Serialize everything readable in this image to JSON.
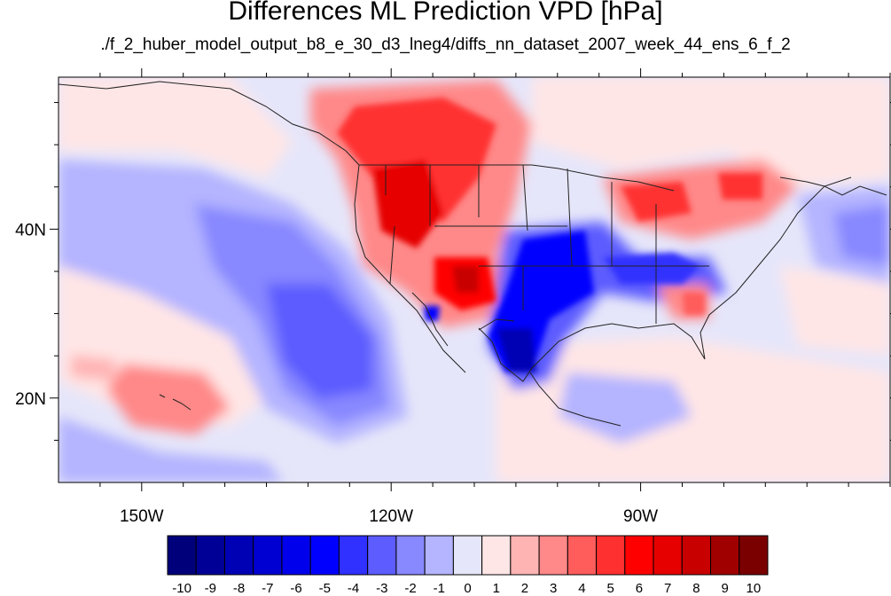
{
  "title": "Differences ML Prediction VPD [hPa]",
  "subtitle": "./f_2_huber_model_output_b8_e_30_d3_lneg4/diffs_nn_dataset_2007_week_44_ens_6_f_2",
  "map": {
    "lon_range": [
      -160,
      -60
    ],
    "lat_range": [
      10,
      58
    ],
    "lon_ticks": [
      {
        "value": -150,
        "label": "150W"
      },
      {
        "value": -120,
        "label": "120W"
      },
      {
        "value": -90,
        "label": "90W"
      }
    ],
    "lat_ticks": [
      {
        "value": 40,
        "label": "40N"
      },
      {
        "value": 20,
        "label": "20N"
      }
    ]
  },
  "colorbar": {
    "labels": [
      "-10",
      "-9",
      "-8",
      "-7",
      "-6",
      "-5",
      "-4",
      "-3",
      "-2",
      "-1",
      "0",
      "1",
      "2",
      "3",
      "4",
      "5",
      "6",
      "7",
      "8",
      "9",
      "10"
    ],
    "colors": [
      "#00007a",
      "#000096",
      "#0000b4",
      "#0000d2",
      "#0000ec",
      "#0000ff",
      "#3030ff",
      "#5c5cff",
      "#8888ff",
      "#b4b4ff",
      "#e6e6fa",
      "#ffe6e6",
      "#ffb4b4",
      "#ff8888",
      "#ff5c5c",
      "#ff3030",
      "#ff0000",
      "#e60000",
      "#c80000",
      "#a00000",
      "#7a0000"
    ]
  }
}
